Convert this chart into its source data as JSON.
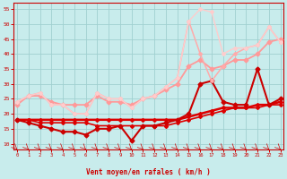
{
  "bg_color": "#c8ecec",
  "grid_color": "#a0d0d0",
  "xlabel": "Vent moyen/en rafales ( km/h )",
  "xlabel_color": "#cc0000",
  "tick_color": "#cc0000",
  "axis_color": "#cc0000",
  "ylim": [
    8,
    57
  ],
  "yticks": [
    10,
    15,
    20,
    25,
    30,
    35,
    40,
    45,
    50,
    55
  ],
  "xlim": [
    -0.3,
    23.3
  ],
  "xticks": [
    0,
    1,
    2,
    3,
    4,
    5,
    6,
    7,
    8,
    9,
    10,
    11,
    12,
    13,
    14,
    15,
    16,
    17,
    18,
    19,
    20,
    21,
    22,
    23
  ],
  "series": [
    {
      "y": [
        18,
        18,
        18,
        18,
        18,
        18,
        18,
        18,
        18,
        18,
        18,
        18,
        18,
        18,
        18,
        19,
        20,
        21,
        22,
        22,
        22,
        23,
        23,
        24
      ],
      "color": "#dd0000",
      "lw": 1.8,
      "marker": "D",
      "ms": 2.0
    },
    {
      "y": [
        18,
        18,
        17,
        17,
        17,
        17,
        17,
        16,
        16,
        16,
        16,
        16,
        16,
        16,
        17,
        18,
        19,
        20,
        21,
        22,
        22,
        22,
        23,
        23
      ],
      "color": "#dd0000",
      "lw": 1.2,
      "marker": "D",
      "ms": 2.0
    },
    {
      "y": [
        18,
        17,
        16,
        15,
        14,
        14,
        13,
        15,
        15,
        16,
        11,
        16,
        16,
        17,
        18,
        20,
        30,
        31,
        24,
        23,
        23,
        35,
        23,
        25
      ],
      "color": "#cc0000",
      "lw": 1.5,
      "marker": "D",
      "ms": 2.5
    },
    {
      "y": [
        23,
        26,
        26,
        24,
        23,
        23,
        23,
        26,
        24,
        24,
        23,
        25,
        26,
        28,
        30,
        36,
        38,
        35,
        36,
        38,
        38,
        40,
        44,
        45
      ],
      "color": "#ff9999",
      "lw": 1.3,
      "marker": "D",
      "ms": 2.5
    },
    {
      "y": [
        24,
        26,
        27,
        23,
        23,
        20,
        20,
        27,
        25,
        25,
        22,
        25,
        26,
        29,
        32,
        51,
        40,
        31,
        36,
        40,
        42,
        43,
        49,
        44
      ],
      "color": "#ffaaaa",
      "lw": 1.1,
      "marker": "D",
      "ms": 2.0
    },
    {
      "y": [
        24,
        26,
        27,
        23,
        23,
        20,
        20,
        27,
        25,
        25,
        22,
        25,
        26,
        29,
        32,
        51,
        55,
        54,
        40,
        42,
        42,
        43,
        49,
        44
      ],
      "color": "#ffcccc",
      "lw": 1.0,
      "marker": "D",
      "ms": 2.0
    }
  ]
}
